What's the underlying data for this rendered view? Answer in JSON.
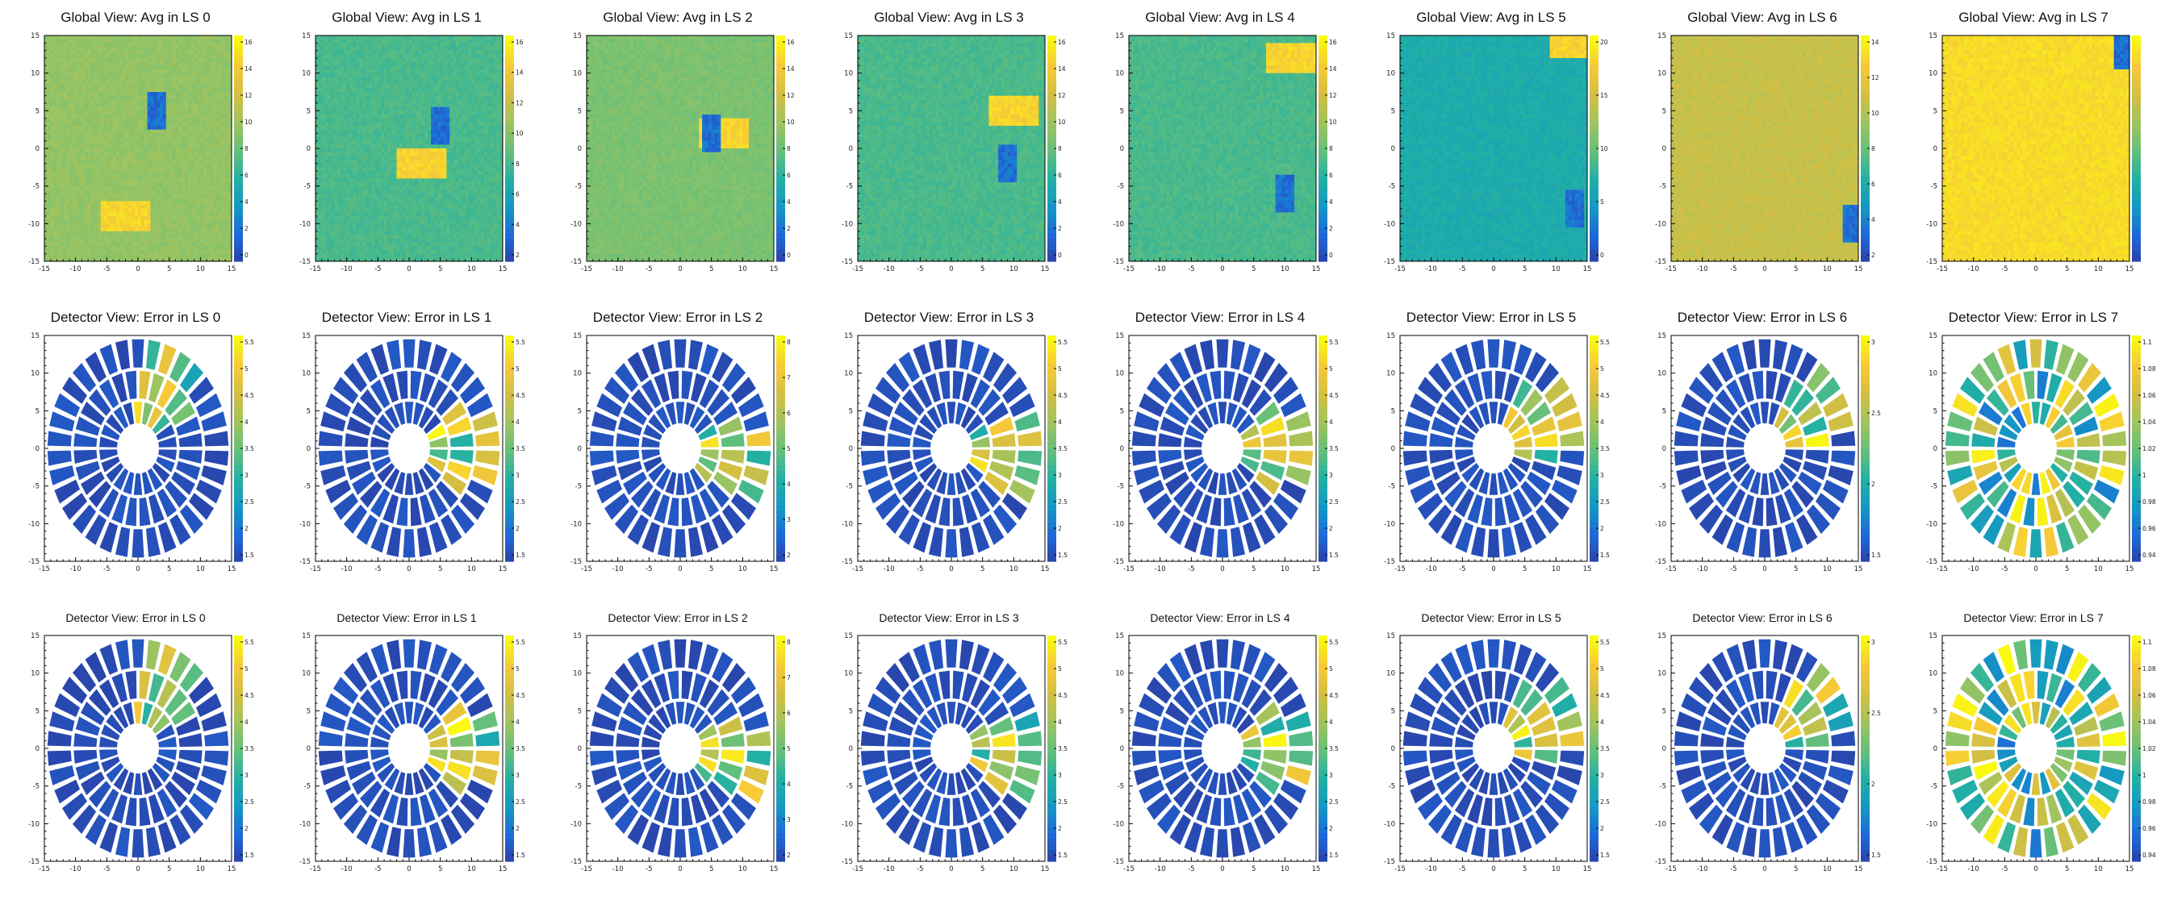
{
  "figure": {
    "rows": 3,
    "cols": 8
  },
  "colors": {
    "palette": [
      "#2b3fa3",
      "#1f68d9",
      "#1497c4",
      "#22b0a4",
      "#64bf7b",
      "#9fc45f",
      "#d3bf43",
      "#f6c938",
      "#f9fb0f"
    ],
    "background": "#ffffff"
  },
  "global_row": {
    "titles": [
      "Global View: Avg in LS  0",
      "Global View: Avg in LS  1",
      "Global View: Avg in LS  2",
      "Global View: Avg in LS  3",
      "Global View: Avg in LS  4",
      "Global View: Avg in LS  5",
      "Global View: Avg in LS  6",
      "Global View: Avg in LS  7"
    ],
    "zticks": [
      [
        "16",
        "14",
        "12",
        "10",
        "8",
        "6",
        "4",
        "2",
        "0"
      ],
      [
        "16",
        "14",
        "12",
        "10",
        "8",
        "6",
        "4",
        "2"
      ],
      [
        "16",
        "14",
        "12",
        "10",
        "8",
        "6",
        "4",
        "2",
        "0"
      ],
      [
        "16",
        "14",
        "12",
        "10",
        "8",
        "6",
        "4",
        "2",
        "0"
      ],
      [
        "16",
        "14",
        "12",
        "10",
        "8",
        "6",
        "4",
        "2",
        "0"
      ],
      [
        "20",
        "15",
        "10",
        "5",
        "0"
      ],
      [
        "14",
        "12",
        "10",
        "8",
        "6",
        "4",
        "2"
      ],
      []
    ]
  },
  "detector_row_1": {
    "titles": [
      "Detector View: Error in LS  0",
      "Detector View: Error in LS  1",
      "Detector View: Error in LS  2",
      "Detector View: Error in LS  3",
      "Detector View: Error in LS  4",
      "Detector View: Error in LS  5",
      "Detector View: Error in LS  6",
      "Detector View: Error in LS  7"
    ],
    "zticks": [
      [
        "5.5",
        "5",
        "4.5",
        "4",
        "3.5",
        "3",
        "2.5",
        "2",
        "1.5"
      ],
      [
        "5.5",
        "5",
        "4.5",
        "4",
        "3.5",
        "3",
        "2.5",
        "2",
        "1.5"
      ],
      [
        "8",
        "7",
        "6",
        "5",
        "4",
        "3",
        "2"
      ],
      [
        "5.5",
        "5",
        "4.5",
        "4",
        "3.5",
        "3",
        "2.5",
        "2",
        "1.5"
      ],
      [
        "5.5",
        "5",
        "4.5",
        "4",
        "3.5",
        "3",
        "2.5",
        "2",
        "1.5"
      ],
      [
        "5.5",
        "5",
        "4.5",
        "4",
        "3.5",
        "3",
        "2.5",
        "2",
        "1.5"
      ],
      [
        "3",
        "2.5",
        "2",
        "1.5"
      ],
      [
        "1.1",
        "1.08",
        "1.06",
        "1.04",
        "1.02",
        "1",
        "0.98",
        "0.96",
        "0.94"
      ]
    ]
  },
  "detector_row_2": {
    "titles": [
      "Detector View: Error in LS  0",
      "Detector View: Error in LS  1",
      "Detector View: Error in LS  2",
      "Detector View: Error in LS  3",
      "Detector View: Error in LS  4",
      "Detector View: Error in LS  5",
      "Detector View: Error in LS  6",
      "Detector View: Error in LS  7"
    ],
    "zticks": [
      [
        "5.5",
        "5",
        "4.5",
        "4",
        "3.5",
        "3",
        "2.5",
        "2",
        "1.5"
      ],
      [
        "5.5",
        "5",
        "4.5",
        "4",
        "3.5",
        "3",
        "2.5",
        "2",
        "1.5"
      ],
      [
        "8",
        "7",
        "6",
        "5",
        "4",
        "3",
        "2"
      ],
      [
        "5.5",
        "5",
        "4.5",
        "4",
        "3.5",
        "3",
        "2.5",
        "2",
        "1.5"
      ],
      [
        "5.5",
        "5",
        "4.5",
        "4",
        "3.5",
        "3",
        "2.5",
        "2",
        "1.5"
      ],
      [
        "5.5",
        "5",
        "4.5",
        "4",
        "3.5",
        "3",
        "2.5",
        "2",
        "1.5"
      ],
      [
        "3",
        "2.5",
        "2",
        "1.5"
      ],
      [
        "1.1",
        "1.08",
        "1.06",
        "1.04",
        "1.02",
        "1",
        "0.98",
        "0.96",
        "0.94"
      ]
    ]
  },
  "chart_data": [
    {
      "type": "heatmap",
      "panel": "global",
      "xlim": [
        -15,
        15
      ],
      "ylim": [
        -15,
        15
      ],
      "xticks": [
        "-15",
        "-10",
        "-5",
        "0",
        "5",
        "10",
        "15"
      ],
      "yticks": [
        "15",
        "10",
        "5",
        "0",
        "-5",
        "-10",
        "-15"
      ],
      "background_level": [
        0.6,
        0.45,
        0.55,
        0.45,
        0.45,
        0.35,
        0.72,
        0.92
      ],
      "low_region_center": [
        [
          3,
          5
        ],
        [
          5,
          3
        ],
        [
          5,
          2
        ],
        [
          9,
          -2
        ],
        [
          10,
          -6
        ],
        [
          13,
          -8
        ],
        [
          14,
          -10
        ],
        [
          14,
          13
        ]
      ],
      "high_region_center": [
        [
          -2,
          -9
        ],
        [
          2,
          -2
        ],
        [
          7,
          2
        ],
        [
          10,
          5
        ],
        [
          11,
          12
        ],
        [
          13,
          14
        ],
        [
          null,
          null
        ],
        [
          null,
          null
        ]
      ]
    },
    {
      "type": "heatmap",
      "panel": "detector",
      "xlim": [
        -15,
        15
      ],
      "ylim": [
        -15,
        15
      ],
      "xticks": [
        "-15",
        "-10",
        "-5",
        "0",
        "5",
        "10",
        "15"
      ],
      "yticks": [
        "15",
        "10",
        "5",
        "0",
        "-5",
        "-10",
        "-15"
      ],
      "rings": 3,
      "sectors_per_ring": [
        22,
        28,
        34
      ],
      "hot_azimuth_deg": [
        300,
        0,
        10,
        5,
        0,
        -25,
        -30,
        null
      ]
    }
  ]
}
